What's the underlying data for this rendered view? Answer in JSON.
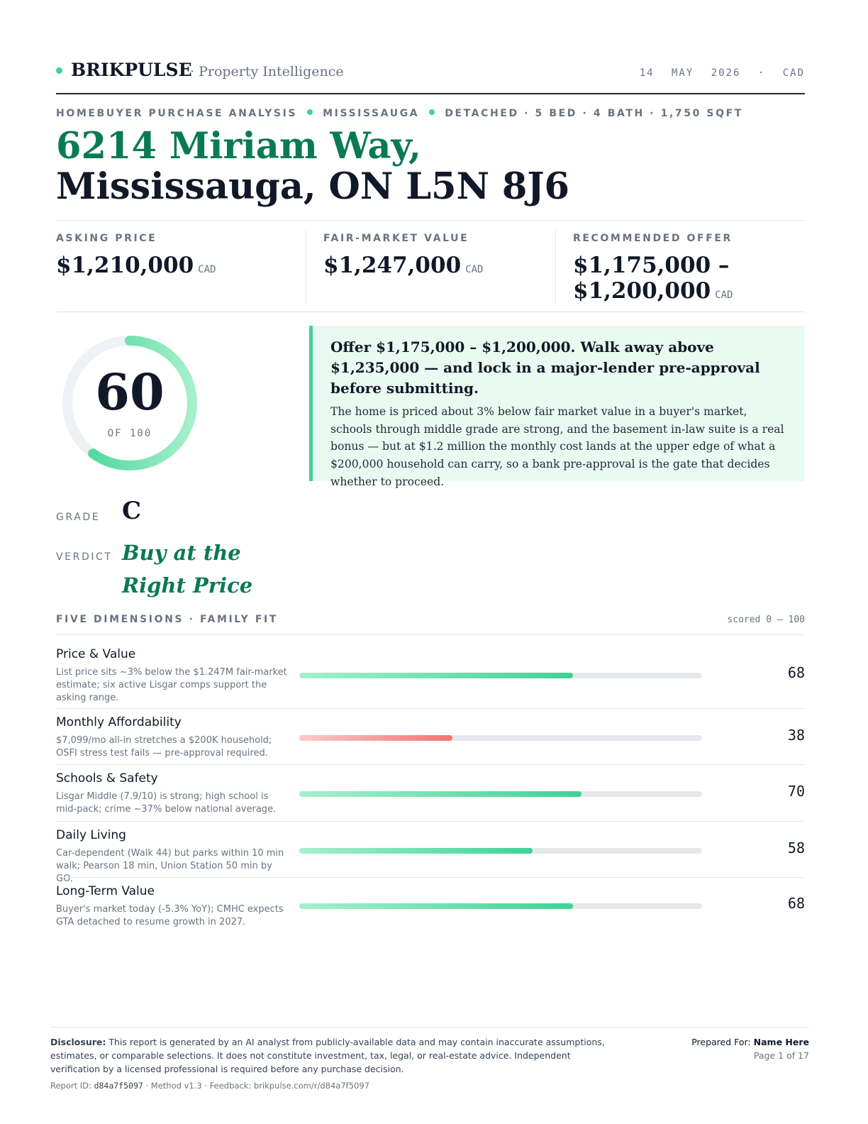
{
  "header": {
    "brand": "BRIKPULSE",
    "tagline": "· Property Intelligence",
    "dateline": "14 MAY 2026 · CAD"
  },
  "kicker": [
    "HOMEBUYER PURCHASE ANALYSIS",
    "MISSISSAUGA",
    "DETACHED · 5 BED · 4 BATH · 1,750 SQFT"
  ],
  "title": {
    "line1": "6214 Miriam Way,",
    "line2": "Mississauga, ON L5N 8J6"
  },
  "metrics": [
    {
      "label": "ASKING PRICE",
      "value": "$1,210,000",
      "unit": "CAD"
    },
    {
      "label": "FAIR-MARKET VALUE",
      "value": "$1,247,000",
      "unit": "CAD"
    },
    {
      "label": "RECOMMENDED OFFER",
      "value": "$1,175,000 – $1,200,000",
      "unit": "CAD"
    }
  ],
  "score": {
    "value": 60,
    "max": 100,
    "label": "OF 100",
    "color": [
      "#a6f0cc",
      "#3fd295"
    ],
    "track": "#eef1f5"
  },
  "callout": {
    "headline": "Offer $1,175,000 – $1,200,000. Walk away above $1,235,000 — and lock in a major-lender pre-approval before submitting.",
    "body": "The home is priced about 3% below fair market value in a buyer's market, schools through middle grade are strong, and the basement in-law suite is a real bonus — but at $1.2 million the monthly cost lands at the upper edge of what a $200,000 household can carry, so a bank pre-approval is the gate that decides whether to proceed."
  },
  "grade": {
    "label": "GRADE",
    "value": "C"
  },
  "verdict": {
    "label": "VERDICT",
    "value": "Buy at the Right Price"
  },
  "dimensions": {
    "title": "FIVE DIMENSIONS · FAMILY FIT",
    "scale_label": "scored 0 — 100",
    "min": 0,
    "max": 100,
    "items": [
      {
        "name": "Price & Value",
        "note": "List price sits ~3% below the $1.247M fair-market estimate; six active Lisgar comps support the asking range.",
        "score": 68,
        "color": [
          "#a6f0cc",
          "#3fd295"
        ]
      },
      {
        "name": "Monthly Affordability",
        "note": "$7,099/mo all-in stretches a $200K household; OSFI stress test fails — pre-approval required.",
        "score": 38,
        "color": [
          "#fccaca",
          "#f47272"
        ]
      },
      {
        "name": "Schools & Safety",
        "note": "Lisgar Middle (7.9/10) is strong; high school is mid-pack; crime ~37% below national average.",
        "score": 70,
        "color": [
          "#a6f0cc",
          "#3fd295"
        ]
      },
      {
        "name": "Daily Living",
        "note": "Car-dependent (Walk 44) but parks within 10 min walk; Pearson 18 min, Union Station 50 min by GO.",
        "score": 58,
        "color": [
          "#a6f0cc",
          "#3fd295"
        ]
      },
      {
        "name": "Long-Term Value",
        "note": "Buyer's market today (-5.3% YoY); CMHC expects GTA detached to resume growth in 2027.",
        "score": 68,
        "color": [
          "#a6f0cc",
          "#3fd295"
        ]
      }
    ]
  },
  "footer": {
    "disclosure_label": "Disclosure:",
    "disclosure": "This report is generated by an AI analyst from publicly-available data and may contain inaccurate assumptions, estimates, or comparable selections. It does not constitute investment, tax, legal, or real-estate advice. Independent verification by a licensed professional is required before any purchase decision.",
    "report_label": "Report ID:",
    "report_id": "d84a7f5097",
    "report_rest": "· Method v1.3 · Feedback: brikpulse.com/r/d84a7f5097",
    "prepared_label": "Prepared For:",
    "prepared_name": "Name Here",
    "page": "Page 1 of 17"
  }
}
